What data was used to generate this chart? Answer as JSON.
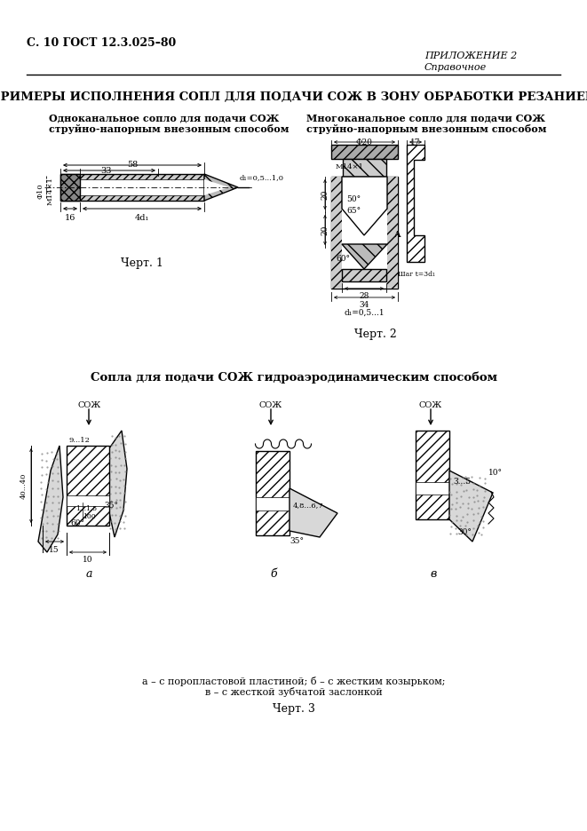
{
  "page_header_left": "С. 10 ГОСТ 12.3.025–80",
  "page_header_right_line1": "ПРИЛОЖЕНИЕ 2",
  "page_header_right_line2": "Справочное",
  "main_title": "ПРИМЕРЫ ИСПОЛНЕНИЯ СОПЛ ДЛЯ ПОДАЧИ СОЖ В ЗОНУ ОБРАБОТКИ РЕЗАНИЕМ",
  "subtitle_left_line1": "Одноканальное сопло для подачи СОЖ",
  "subtitle_left_line2": "струйно-напорным внезонным способом",
  "subtitle_right_line1": "Многоканальное сопло для подачи СОЖ",
  "subtitle_right_line2": "струйно-напорным внезонным способом",
  "caption1": "Черт. 1",
  "caption2": "Черт. 2",
  "section_title": "Сопла для подачи СОЖ гидроаэродинамическим способом",
  "caption3_line1": "а – с поропластовой пластиной; б – с жестким козырьком;",
  "caption3_line2": "в – с жесткой зубчатой заслонкой",
  "caption3": "Черт. 3",
  "bg_color": "#ffffff",
  "text_color": "#000000",
  "fig_width": 6.61,
  "fig_height": 9.36
}
